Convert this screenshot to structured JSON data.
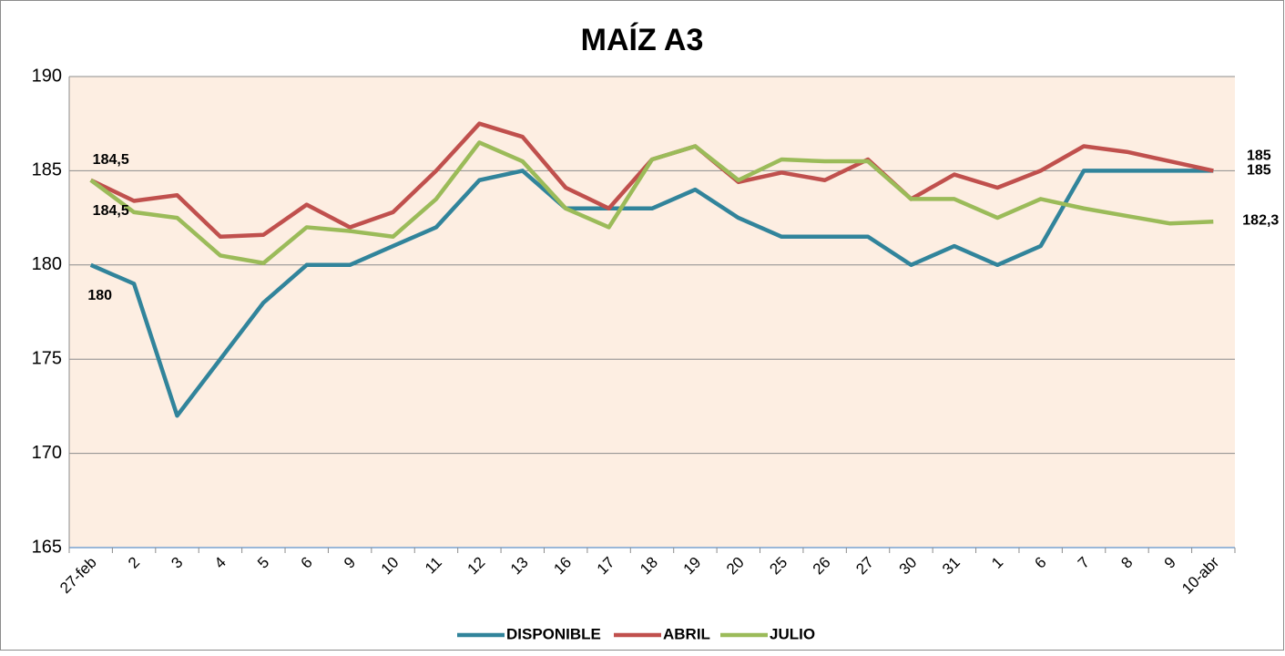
{
  "chart_data": {
    "type": "line",
    "title": "MAÍZ A3",
    "categories": [
      "27-feb",
      "2",
      "3",
      "4",
      "5",
      "6",
      "9",
      "10",
      "11",
      "12",
      "13",
      "16",
      "17",
      "18",
      "19",
      "20",
      "25",
      "26",
      "27",
      "30",
      "31",
      "1",
      "6",
      "7",
      "8",
      "9",
      "10-abr"
    ],
    "series": [
      {
        "name": "DISPONIBLE",
        "color": "#31849b",
        "values": [
          180,
          179,
          172,
          175,
          178,
          180,
          180,
          181,
          182,
          184.5,
          185,
          183,
          183,
          183,
          184,
          182.5,
          181.5,
          181.5,
          181.5,
          180,
          181,
          180,
          181,
          185,
          185,
          185,
          185
        ],
        "value_labels": [
          "180",
          null,
          null,
          null,
          null,
          null,
          null,
          null,
          null,
          null,
          null,
          null,
          null,
          null,
          null,
          null,
          null,
          null,
          null,
          null,
          null,
          null,
          null,
          null,
          null,
          null,
          "185"
        ]
      },
      {
        "name": "ABRIL",
        "color": "#c0504d",
        "values": [
          184.5,
          183.4,
          183.7,
          181.5,
          181.6,
          183.2,
          182,
          182.8,
          185,
          187.5,
          186.8,
          184.1,
          183,
          185.6,
          186.3,
          184.4,
          184.9,
          184.5,
          185.6,
          183.5,
          184.8,
          184.1,
          185,
          186.3,
          186,
          185.5,
          185
        ],
        "value_labels": [
          "184,5",
          null,
          null,
          null,
          null,
          null,
          null,
          null,
          null,
          null,
          null,
          null,
          null,
          null,
          null,
          null,
          null,
          null,
          null,
          null,
          null,
          null,
          null,
          null,
          null,
          null,
          "185"
        ]
      },
      {
        "name": "JULIO",
        "color": "#9bbb59",
        "values": [
          184.5,
          182.8,
          182.5,
          180.5,
          180.1,
          182,
          181.8,
          181.5,
          183.5,
          186.5,
          185.5,
          183,
          182,
          185.6,
          186.3,
          184.5,
          185.6,
          185.5,
          185.5,
          183.5,
          183.5,
          182.5,
          183.5,
          183,
          182.6,
          182.2,
          182.3
        ],
        "value_labels": [
          "184,5",
          null,
          null,
          null,
          null,
          null,
          null,
          null,
          null,
          null,
          null,
          null,
          null,
          null,
          null,
          null,
          null,
          null,
          null,
          null,
          null,
          null,
          null,
          null,
          null,
          null,
          "182,3"
        ]
      }
    ],
    "ylim": [
      165,
      190
    ],
    "yticks": [
      165,
      170,
      175,
      180,
      185,
      190
    ],
    "grid": true,
    "legend": "bottom"
  }
}
